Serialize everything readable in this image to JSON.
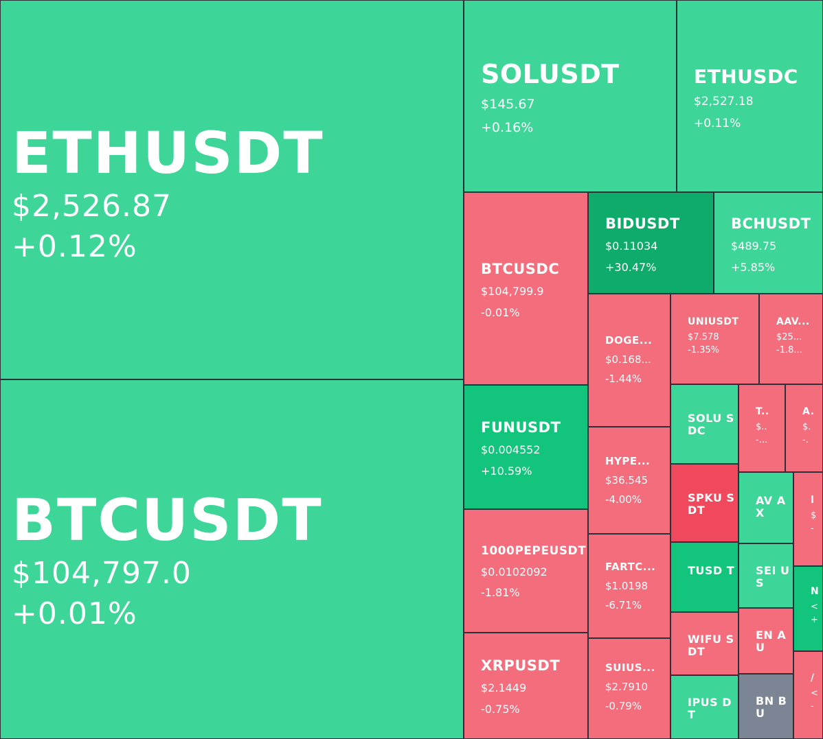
{
  "colors": {
    "background": "#2b3139",
    "up": "#3dd598",
    "up_strong": "#12c47c",
    "up_stronger": "#0eab6b",
    "down": "#f46d7c",
    "down_strong": "#f0495e",
    "neutral": "#7b8594",
    "text": "#ffffff"
  },
  "tiles": [
    {
      "id": "ethusdt",
      "symbol": "ETHUSDT",
      "price": "$2,526.87",
      "change": "+0.12%",
      "tone": "up"
    },
    {
      "id": "btcusdt",
      "symbol": "BTCUSDT",
      "price": "$104,797.0",
      "change": "+0.01%",
      "tone": "up"
    },
    {
      "id": "solusdt",
      "symbol": "SOLUSDT",
      "price": "$145.67",
      "change": "+0.16%",
      "tone": "up"
    },
    {
      "id": "ethusdc",
      "symbol": "ETHUSDC",
      "price": "$2,527.18",
      "change": "+0.11%",
      "tone": "up"
    },
    {
      "id": "btcusdc",
      "symbol": "BTCUSDC",
      "price": "$104,799.9",
      "change": "-0.01%",
      "tone": "down"
    },
    {
      "id": "bidusdt",
      "symbol": "BIDUSDT",
      "price": "$0.11034",
      "change": "+30.47%",
      "tone": "up_stronger"
    },
    {
      "id": "bchusdt",
      "symbol": "BCHUSDT",
      "price": "$489.75",
      "change": "+5.85%",
      "tone": "up"
    },
    {
      "id": "funusdt",
      "symbol": "FUNUSDT",
      "price": "$0.004552",
      "change": "+10.59%",
      "tone": "up_strong"
    },
    {
      "id": "1000pepeusdt",
      "symbol": "1000PEPEUSDT",
      "price": "$0.0102092",
      "change": "-1.81%",
      "tone": "down"
    },
    {
      "id": "xrpusdt",
      "symbol": "XRPUSDT",
      "price": "$2.1449",
      "change": "-0.75%",
      "tone": "down"
    },
    {
      "id": "dogeusdt",
      "symbol": "DOGE...",
      "price": "$0.168...",
      "change": "-1.44%",
      "tone": "down"
    },
    {
      "id": "hypeusdt",
      "symbol": "HYPE...",
      "price": "$36.545",
      "change": "-4.00%",
      "tone": "down"
    },
    {
      "id": "fartcoinusdt",
      "symbol": "FARTC...",
      "price": "$1.0198",
      "change": "-6.71%",
      "tone": "down"
    },
    {
      "id": "suiusdt",
      "symbol": "SUIUS...",
      "price": "$2.7910",
      "change": "-0.79%",
      "tone": "down"
    },
    {
      "id": "uniusdt",
      "symbol": "UNIUSDT",
      "price": "$7.578",
      "change": "-1.35%",
      "tone": "down"
    },
    {
      "id": "aaveusdt",
      "symbol": "AAV...",
      "price": "$25...",
      "change": "-1.8...",
      "tone": "down"
    },
    {
      "id": "solusdc",
      "symbol": "SOLU SDC",
      "price": "",
      "change": "",
      "tone": "up"
    },
    {
      "id": "t-tile",
      "symbol": "T..",
      "price": "$..",
      "change": "-...",
      "tone": "down"
    },
    {
      "id": "a-tile",
      "symbol": "A.",
      "price": "$.",
      "change": "-.",
      "tone": "down"
    },
    {
      "id": "spkusdt",
      "symbol": "SPKU SDT",
      "price": "",
      "change": "",
      "tone": "down_strong"
    },
    {
      "id": "avaxusdt",
      "symbol": "AV AX",
      "price": "",
      "change": "",
      "tone": "up"
    },
    {
      "id": "l-tile",
      "symbol": "l",
      "price": "$",
      "change": "-",
      "tone": "down"
    },
    {
      "id": "tusdt",
      "symbol": "TUSD T",
      "price": "",
      "change": "",
      "tone": "up_strong"
    },
    {
      "id": "seiusdt",
      "symbol": "SEI US",
      "price": "",
      "change": "",
      "tone": "up"
    },
    {
      "id": "n-tile",
      "symbol": "N",
      "price": "<",
      "change": "+",
      "tone": "up_strong"
    },
    {
      "id": "wifusdt",
      "symbol": "WIFU SDT",
      "price": "",
      "change": "",
      "tone": "down"
    },
    {
      "id": "enausdt",
      "symbol": "EN AU",
      "price": "",
      "change": "",
      "tone": "down"
    },
    {
      "id": "ipusdt",
      "symbol": "IPUS DT",
      "price": "",
      "change": "",
      "tone": "up"
    },
    {
      "id": "bnbusdt",
      "symbol": "BN BU",
      "price": "",
      "change": "",
      "tone": "neutral"
    },
    {
      "id": "last-tile",
      "symbol": "/",
      "price": "<",
      "change": "-",
      "tone": "down"
    }
  ]
}
